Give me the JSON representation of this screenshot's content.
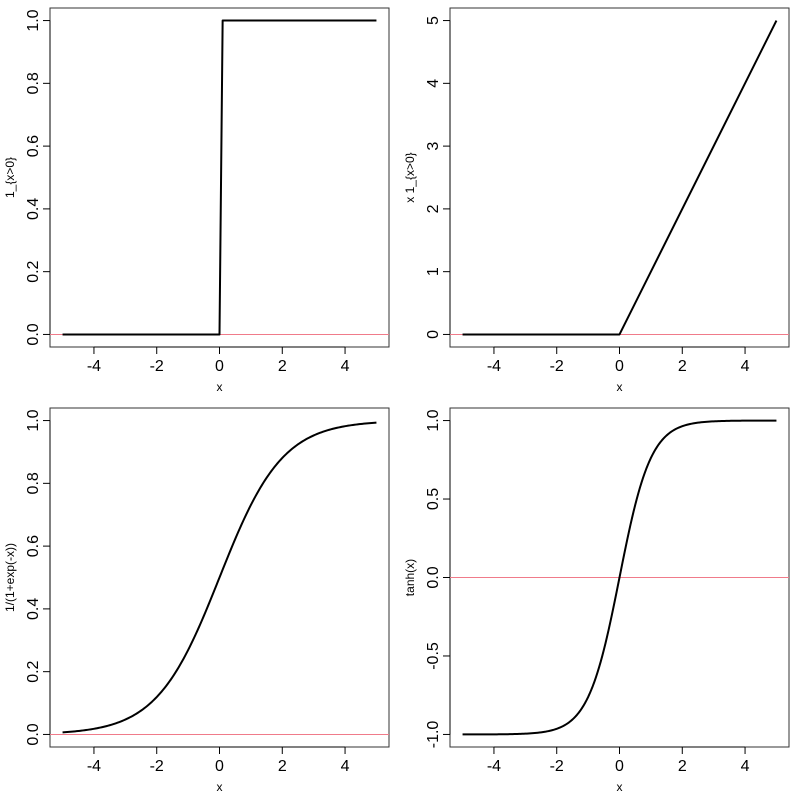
{
  "chart_data": [
    {
      "type": "line",
      "function": "step",
      "xlabel": "x",
      "ylabel": "1_{x>0}",
      "xlim": [
        -5,
        5
      ],
      "ylim": [
        0,
        1
      ],
      "x_ticks": [
        -4,
        -2,
        0,
        2,
        4
      ],
      "x_tick_labels": [
        "-4",
        "-2",
        "0",
        "2",
        "4"
      ],
      "y_ticks": [
        0,
        0.2,
        0.4,
        0.6,
        0.8,
        1
      ],
      "y_tick_labels": [
        "0.0",
        "0.2",
        "0.4",
        "0.6",
        "0.8",
        "1.0"
      ],
      "x": [
        -5,
        0,
        0.1,
        5
      ],
      "y": [
        0,
        0,
        1,
        1
      ],
      "reference_line": {
        "y": 0,
        "color": "#f07b8a"
      }
    },
    {
      "type": "line",
      "function": "relu",
      "xlabel": "x",
      "ylabel": "x 1_{x>0}",
      "xlim": [
        -5,
        5
      ],
      "ylim": [
        0,
        5
      ],
      "x_ticks": [
        -4,
        -2,
        0,
        2,
        4
      ],
      "x_tick_labels": [
        "-4",
        "-2",
        "0",
        "2",
        "4"
      ],
      "y_ticks": [
        0,
        1,
        2,
        3,
        4,
        5
      ],
      "y_tick_labels": [
        "0",
        "1",
        "2",
        "3",
        "4",
        "5"
      ],
      "x": [
        -5,
        0,
        5
      ],
      "y": [
        0,
        0,
        5
      ],
      "reference_line": {
        "y": 0,
        "color": "#f07b8a"
      }
    },
    {
      "type": "line",
      "function": "sigmoid",
      "xlabel": "x",
      "ylabel": "1/(1+exp(-x))",
      "xlim": [
        -5,
        5
      ],
      "ylim": [
        0,
        1
      ],
      "x_ticks": [
        -4,
        -2,
        0,
        2,
        4
      ],
      "x_tick_labels": [
        "-4",
        "-2",
        "0",
        "2",
        "4"
      ],
      "y_ticks": [
        0,
        0.2,
        0.4,
        0.6,
        0.8,
        1
      ],
      "y_tick_labels": [
        "0.0",
        "0.2",
        "0.4",
        "0.6",
        "0.8",
        "1.0"
      ],
      "x": [
        -5,
        -4,
        -3,
        -2,
        -1,
        0,
        1,
        2,
        3,
        4,
        5
      ],
      "y": [
        0.0067,
        0.018,
        0.047,
        0.119,
        0.269,
        0.5,
        0.731,
        0.881,
        0.953,
        0.982,
        0.9933
      ],
      "reference_line": {
        "y": 0,
        "color": "#f07b8a"
      }
    },
    {
      "type": "line",
      "function": "tanh",
      "xlabel": "x",
      "ylabel": "tanh(x)",
      "xlim": [
        -5,
        5
      ],
      "ylim": [
        -1,
        1
      ],
      "x_ticks": [
        -4,
        -2,
        0,
        2,
        4
      ],
      "x_tick_labels": [
        "-4",
        "-2",
        "0",
        "2",
        "4"
      ],
      "y_ticks": [
        -1,
        -0.5,
        0,
        0.5,
        1
      ],
      "y_tick_labels": [
        "-1.0",
        "-0.5",
        "0.0",
        "0.5",
        "1.0"
      ],
      "x": [
        -5,
        -4,
        -3,
        -2,
        -1,
        -0.5,
        0,
        0.5,
        1,
        2,
        3,
        4,
        5
      ],
      "y": [
        -0.9999,
        -0.9993,
        -0.995,
        -0.964,
        -0.762,
        -0.462,
        0,
        0.462,
        0.762,
        0.964,
        0.995,
        0.9993,
        0.9999
      ],
      "reference_line": {
        "y": 0,
        "color": "#f07b8a"
      }
    }
  ]
}
